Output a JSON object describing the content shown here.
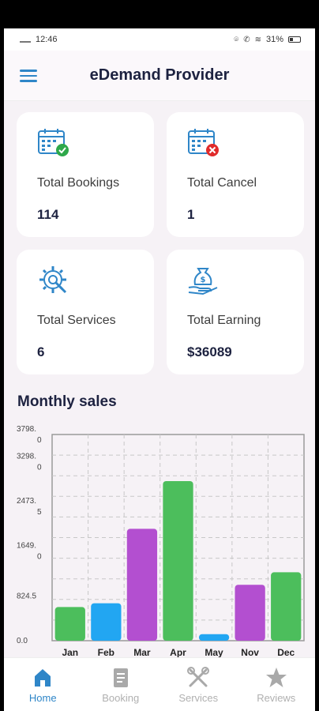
{
  "status_bar": {
    "time": "12:46",
    "battery": "31%"
  },
  "app_bar": {
    "title": "eDemand Provider"
  },
  "cards": [
    {
      "label": "Total Bookings",
      "value": "114",
      "icon": "calendar-check-icon"
    },
    {
      "label": "Total Cancel",
      "value": "1",
      "icon": "calendar-cancel-icon"
    },
    {
      "label": "Total Services",
      "value": "6",
      "icon": "gear-wrench-icon"
    },
    {
      "label": "Total Earning",
      "value": "$36089",
      "icon": "money-bag-hand-icon"
    }
  ],
  "section": {
    "monthly_sales": "Monthly sales"
  },
  "chart_data": {
    "type": "bar",
    "categories": [
      "Jan",
      "Feb",
      "Mar",
      "Apr",
      "May",
      "Nov",
      "Dec"
    ],
    "values": [
      620,
      690,
      2060,
      2940,
      120,
      1030,
      1260
    ],
    "colors": [
      "#4cbe5c",
      "#22a6f2",
      "#b34fd0",
      "#4cbe5c",
      "#22a6f2",
      "#b34fd0",
      "#4cbe5c"
    ],
    "ytick_labels": [
      [
        "3798.",
        "0"
      ],
      [
        "3298.",
        "0"
      ],
      [
        "2473.",
        "5"
      ],
      [
        "1649.",
        "0"
      ],
      [
        "824.5"
      ],
      [
        "0.0"
      ]
    ],
    "yticks": [
      3798.0,
      3298.0,
      2473.5,
      1649.0,
      824.5,
      0.0
    ],
    "ylim": [
      0,
      3798.0
    ],
    "grid": true
  },
  "bottom_nav": [
    {
      "label": "Home",
      "active": true,
      "icon": "home-icon"
    },
    {
      "label": "Booking",
      "active": false,
      "icon": "booking-document-icon"
    },
    {
      "label": "Services",
      "active": false,
      "icon": "tools-icon"
    },
    {
      "label": "Reviews",
      "active": false,
      "icon": "star-icon"
    }
  ]
}
